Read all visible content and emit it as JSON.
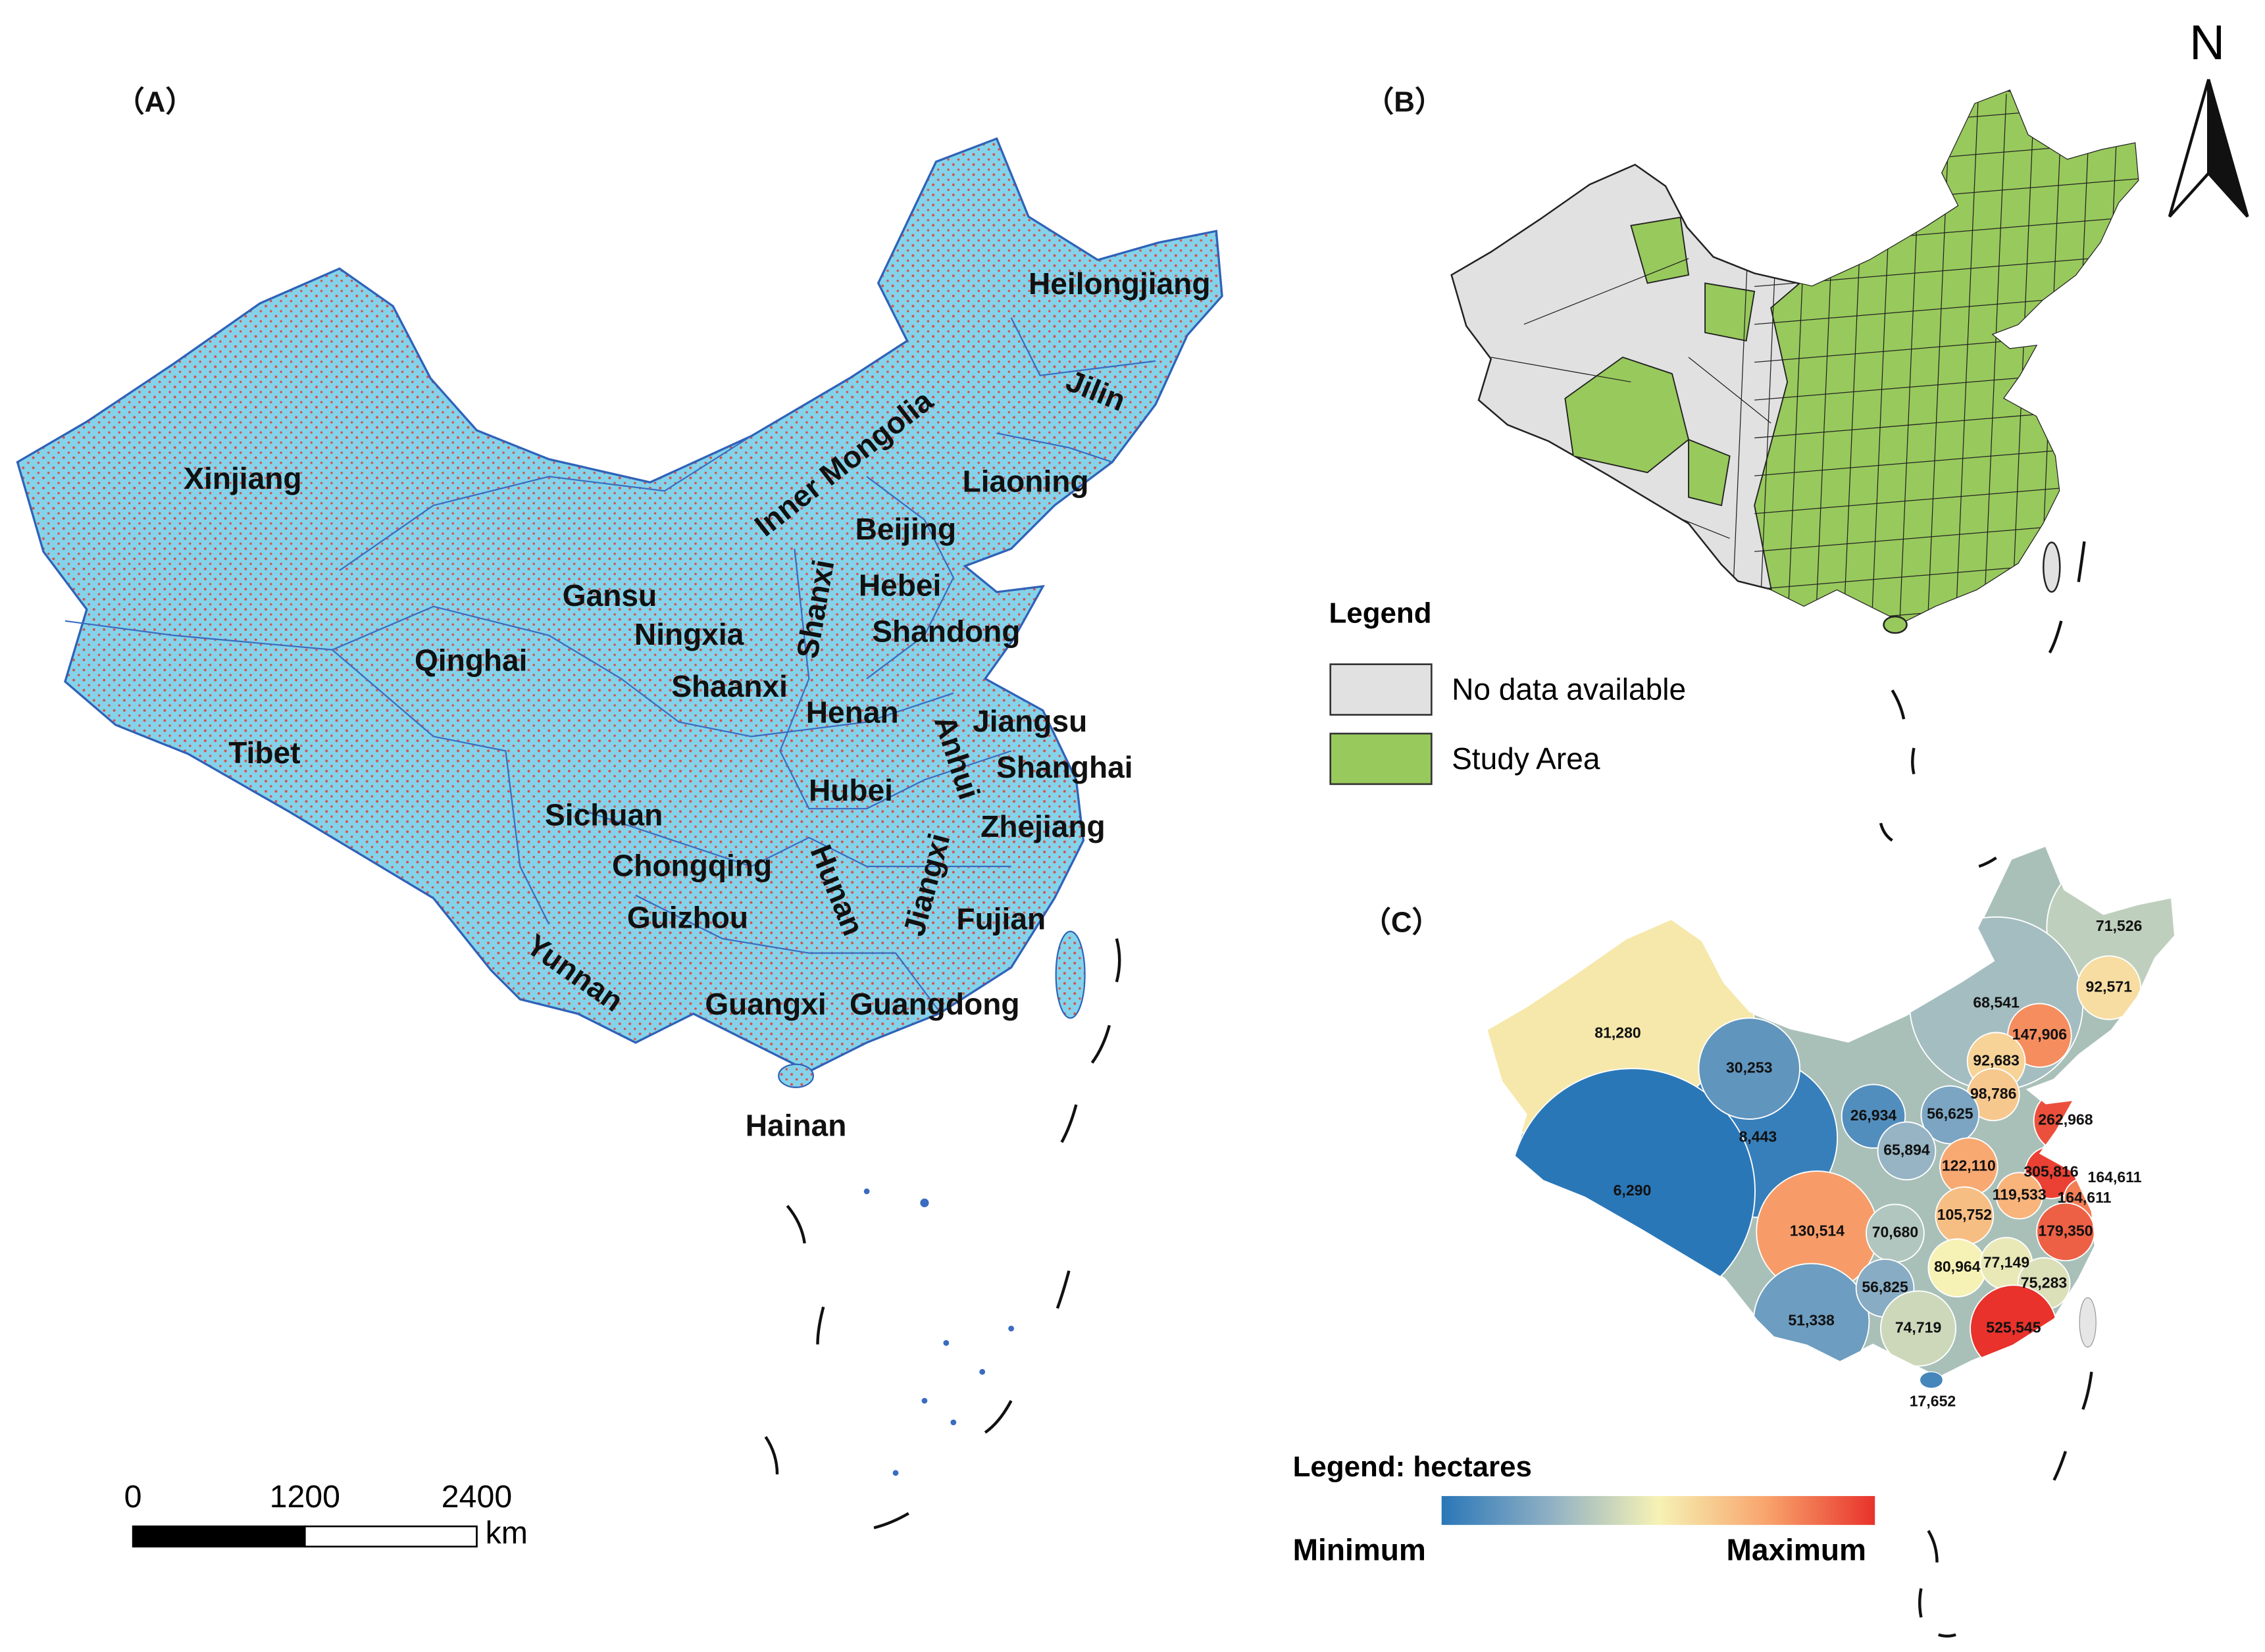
{
  "north_arrow": "N",
  "panels": {
    "a": {
      "label": "（A）",
      "provinces": [
        "Heilongjiang",
        "Jilin",
        "Liaoning",
        "Inner Mongolia",
        "Beijing",
        "Xinjiang",
        "Gansu",
        "Hebei",
        "Shanxi",
        "Ningxia",
        "Shandong",
        "Qinghai",
        "Shaanxi",
        "Henan",
        "Anhui",
        "Jiangsu",
        "Tibet",
        "Shanghai",
        "Hubei",
        "Sichuan",
        "Zhejiang",
        "Chongqing",
        "Hunan",
        "Jiangxi",
        "Guizhou",
        "Fujian",
        "Yunnan",
        "Guangxi",
        "Guangdong",
        "Hainan"
      ],
      "scale_bar": {
        "ticks": [
          0,
          1200,
          2400
        ],
        "unit": "km"
      }
    },
    "b": {
      "label": "（B）",
      "legend": {
        "title": "Legend",
        "items": [
          {
            "label": "No data available",
            "color": "#e1e1e1"
          },
          {
            "label": "Study Area",
            "color": "#98c95c"
          }
        ]
      }
    },
    "c": {
      "label": "（C）",
      "values": [
        {
          "value": 71526,
          "label": "71,526"
        },
        {
          "value": 92571,
          "label": "92,571"
        },
        {
          "value": 81280,
          "label": "81,280"
        },
        {
          "value": 68541,
          "label": "68,541"
        },
        {
          "value": 147906,
          "label": "147,906"
        },
        {
          "value": 30253,
          "label": "30,253"
        },
        {
          "value": 92683,
          "label": "92,683"
        },
        {
          "value": 98786,
          "label": "98,786"
        },
        {
          "value": 262968,
          "label": "262,968"
        },
        {
          "value": 26934,
          "label": "26,934"
        },
        {
          "value": 56625,
          "label": "56,625"
        },
        {
          "value": 8443,
          "label": "8,443"
        },
        {
          "value": 65894,
          "label": "65,894"
        },
        {
          "value": 122110,
          "label": "122,110"
        },
        {
          "value": 305816,
          "label": "305,816"
        },
        {
          "value": 164611,
          "label": "164,611"
        },
        {
          "value": 6290,
          "label": "6,290"
        },
        {
          "value": 119533,
          "label": "119,533"
        },
        {
          "value": 164611,
          "label": "164,611"
        },
        {
          "value": 105752,
          "label": "105,752"
        },
        {
          "value": 130514,
          "label": "130,514"
        },
        {
          "value": 70680,
          "label": "70,680"
        },
        {
          "value": 179350,
          "label": "179,350"
        },
        {
          "value": 80964,
          "label": "80,964"
        },
        {
          "value": 77149,
          "label": "77,149"
        },
        {
          "value": 75283,
          "label": "75,283"
        },
        {
          "value": 56825,
          "label": "56,825"
        },
        {
          "value": 51338,
          "label": "51,338"
        },
        {
          "value": 74719,
          "label": "74,719"
        },
        {
          "value": 525545,
          "label": "525,545"
        },
        {
          "value": 17652,
          "label": "17,652"
        }
      ],
      "legend": {
        "title": "Legend: hectares",
        "min_label": "Minimum",
        "max_label": "Maximum",
        "colors": [
          "#2a77b8",
          "#8fb0c4",
          "#f6f2b5",
          "#f8a46c",
          "#e8322b"
        ]
      }
    }
  }
}
